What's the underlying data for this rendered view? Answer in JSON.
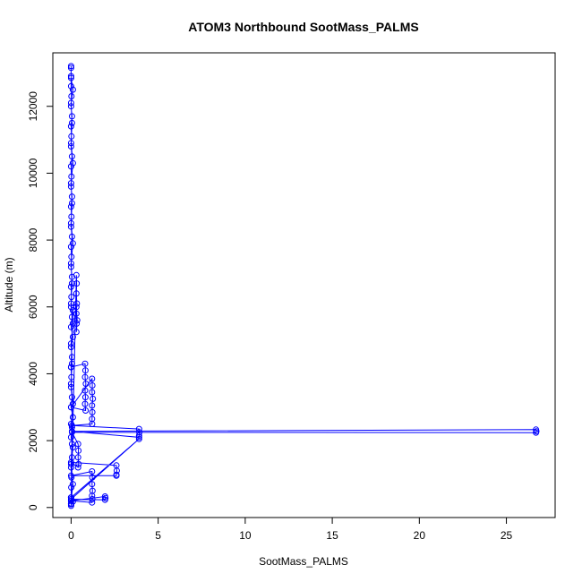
{
  "chart_data": {
    "type": "scatter",
    "title": "ATOM3 Northbound SootMass_PALMS",
    "xlabel": "SootMass_PALMS",
    "ylabel": "Altitude (m)",
    "xlim": [
      -1.05,
      27.8
    ],
    "ylim": [
      -300,
      13600
    ],
    "xticks": [
      0,
      5,
      10,
      15,
      20,
      25
    ],
    "yticks": [
      0,
      2000,
      4000,
      6000,
      8000,
      10000,
      12000
    ],
    "grid": false,
    "legend": "none",
    "marker": "open-circle",
    "connected": true,
    "color": "#0000ff",
    "series": [
      {
        "values": [
          [
            0.0,
            100
          ],
          [
            0.0,
            300
          ],
          [
            0.01,
            600
          ],
          [
            0.02,
            900
          ],
          [
            0.0,
            1200
          ],
          [
            0.05,
            1500
          ],
          [
            0.1,
            1800
          ],
          [
            0.0,
            2100
          ],
          [
            0.05,
            2400
          ],
          [
            0.1,
            2700
          ],
          [
            0.0,
            3000
          ],
          [
            0.05,
            3300
          ],
          [
            0.0,
            3600
          ],
          [
            0.02,
            3900
          ],
          [
            0.0,
            4200
          ],
          [
            0.05,
            4500
          ],
          [
            0.0,
            4800
          ],
          [
            0.1,
            5100
          ],
          [
            0.0,
            5400
          ],
          [
            0.05,
            5700
          ],
          [
            0.0,
            6000
          ],
          [
            0.02,
            6300
          ],
          [
            0.0,
            6600
          ],
          [
            0.05,
            6900
          ],
          [
            0.0,
            7200
          ],
          [
            0.02,
            7500
          ],
          [
            0.0,
            7800
          ],
          [
            0.05,
            8100
          ],
          [
            0.0,
            8400
          ],
          [
            0.02,
            8700
          ],
          [
            0.0,
            9000
          ],
          [
            0.05,
            9300
          ],
          [
            0.0,
            9600
          ],
          [
            0.02,
            9900
          ],
          [
            0.0,
            10200
          ],
          [
            0.05,
            10500
          ],
          [
            0.0,
            10800
          ],
          [
            0.02,
            11100
          ],
          [
            0.0,
            11400
          ],
          [
            0.05,
            11700
          ],
          [
            0.0,
            12000
          ],
          [
            0.02,
            12300
          ],
          [
            0.0,
            12600
          ],
          [
            0.0,
            12900
          ],
          [
            0.0,
            13200
          ],
          [
            0.0,
            13150
          ],
          [
            0.0,
            12850
          ],
          [
            0.1,
            12500
          ],
          [
            0.0,
            12100
          ],
          [
            0.05,
            11500
          ],
          [
            0.0,
            10900
          ],
          [
            0.1,
            10300
          ],
          [
            0.0,
            9700
          ],
          [
            0.05,
            9100
          ],
          [
            0.0,
            8500
          ],
          [
            0.1,
            7900
          ],
          [
            0.0,
            7300
          ],
          [
            0.05,
            6700
          ],
          [
            0.0,
            6100
          ],
          [
            0.1,
            5500
          ],
          [
            0.0,
            4900
          ],
          [
            0.05,
            4300
          ],
          [
            0.0,
            3700
          ],
          [
            0.1,
            3100
          ],
          [
            0.0,
            2500
          ],
          [
            0.05,
            1900
          ],
          [
            0.0,
            1300
          ],
          [
            0.1,
            700
          ],
          [
            0.0,
            200
          ],
          [
            0.0,
            50
          ],
          [
            0.3,
            6950
          ],
          [
            0.32,
            6700
          ],
          [
            0.3,
            6400
          ],
          [
            0.33,
            6100
          ],
          [
            0.3,
            5800
          ],
          [
            0.32,
            5500
          ],
          [
            0.3,
            5250
          ],
          [
            0.35,
            5600
          ],
          [
            0.3,
            6000
          ],
          [
            0.1,
            5900
          ],
          [
            0.0,
            4200
          ],
          [
            0.8,
            4300
          ],
          [
            0.82,
            4100
          ],
          [
            0.8,
            3900
          ],
          [
            0.85,
            3700
          ],
          [
            0.8,
            3500
          ],
          [
            0.82,
            3300
          ],
          [
            0.8,
            3100
          ],
          [
            0.83,
            2900
          ],
          [
            0.0,
            3000
          ],
          [
            1.2,
            3850
          ],
          [
            1.22,
            3650
          ],
          [
            1.2,
            3450
          ],
          [
            1.25,
            3250
          ],
          [
            1.2,
            3050
          ],
          [
            1.22,
            2850
          ],
          [
            1.2,
            2650
          ],
          [
            1.21,
            2500
          ],
          [
            0.05,
            2450
          ],
          [
            3.9,
            2350
          ],
          [
            3.92,
            2250
          ],
          [
            3.9,
            2150
          ],
          [
            3.9,
            2100
          ],
          [
            0.05,
            2280
          ],
          [
            26.7,
            2330
          ],
          [
            26.72,
            2280
          ],
          [
            26.7,
            2240
          ],
          [
            0.05,
            2250
          ],
          [
            0.4,
            1900
          ],
          [
            0.42,
            1700
          ],
          [
            0.4,
            1500
          ],
          [
            0.43,
            1300
          ],
          [
            0.4,
            1200
          ],
          [
            0.0,
            1350
          ],
          [
            2.6,
            1260
          ],
          [
            2.62,
            1100
          ],
          [
            2.6,
            980
          ],
          [
            2.6,
            950
          ],
          [
            0.0,
            950
          ],
          [
            1.2,
            1080
          ],
          [
            1.22,
            900
          ],
          [
            1.2,
            700
          ],
          [
            1.23,
            500
          ],
          [
            1.2,
            350
          ],
          [
            1.22,
            250
          ],
          [
            1.2,
            150
          ],
          [
            0.0,
            200
          ],
          [
            1.95,
            330
          ],
          [
            1.97,
            280
          ],
          [
            1.95,
            230
          ],
          [
            0.0,
            250
          ],
          [
            3.9,
            2050
          ],
          [
            0.0,
            300
          ],
          [
            0.1,
            180
          ],
          [
            0.0,
            120
          ]
        ]
      }
    ]
  }
}
